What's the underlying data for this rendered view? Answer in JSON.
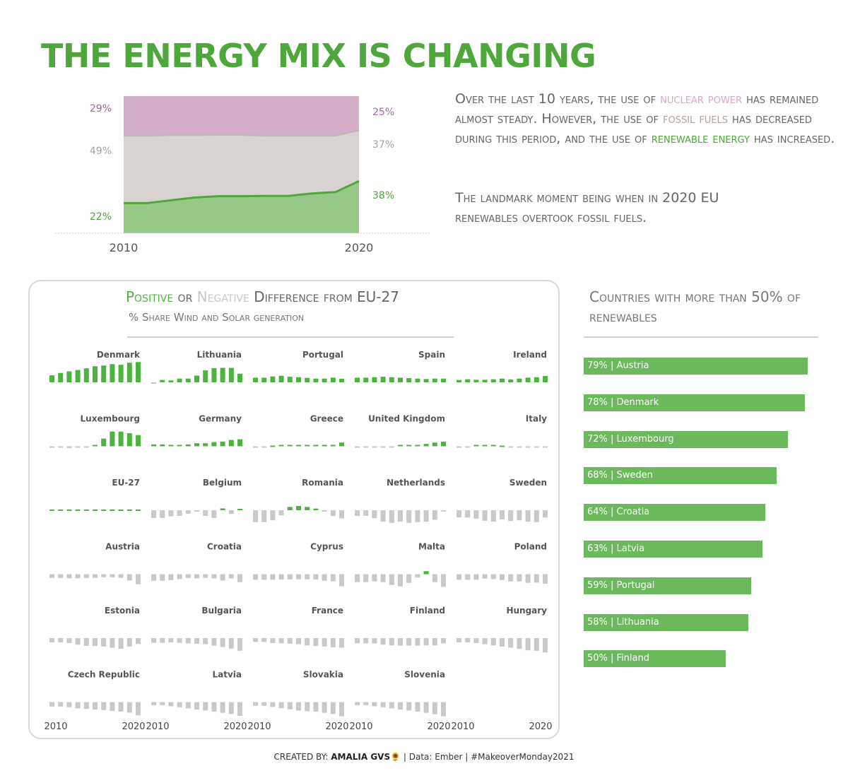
{
  "title": "THE ENERGY MIX IS CHANGING",
  "narrative": {
    "p1_a": "Over the last 10 years, the use of ",
    "p1_nuclear": "nuclear power",
    "p1_b": " has remained almost steady. However, the use of ",
    "p1_fossil": "fossil fuels",
    "p1_c": " has decreased during this period, and the use of ",
    "p1_renew": "renewable energy",
    "p1_d": " has increased.",
    "p2": "The landmark moment being when in 2020 EU renewables overtook fossil fuels."
  },
  "colors": {
    "title_green": "#4da73a",
    "nuclear": "#d4aec8",
    "fossil": "#d8d3d0",
    "renewable": "#98c885",
    "renewable_line": "#4da73a",
    "positive": "#4cb33e",
    "negative": "#c9c9c9",
    "bar": "#6cb85c"
  },
  "chart_data": [
    {
      "type": "area",
      "x": [
        2010,
        2011,
        2012,
        2013,
        2014,
        2015,
        2016,
        2017,
        2018,
        2019,
        2020
      ],
      "series": [
        {
          "name": "Renewables",
          "values": [
            22,
            22,
            24,
            26,
            27,
            27,
            27.2,
            27.2,
            29,
            30,
            38
          ]
        },
        {
          "name": "Fossil",
          "values": [
            49,
            49,
            47.5,
            45.5,
            44.6,
            44.6,
            43.9,
            43.9,
            42.1,
            41.1,
            37
          ]
        },
        {
          "name": "Nuclear",
          "values": [
            29,
            29,
            28.5,
            28.5,
            28.4,
            28.4,
            28.9,
            28.9,
            28.9,
            28.9,
            25
          ]
        }
      ],
      "start_labels": [
        "29%",
        "49%",
        "22%"
      ],
      "end_labels": [
        "25%",
        "37%",
        "38%"
      ],
      "x_tick_labels": [
        "2010",
        "2020"
      ],
      "ylim": [
        0,
        100
      ]
    },
    {
      "type": "bar",
      "title_positive": "Positive",
      "title_or": " or ",
      "title_negative": "Negative",
      "title_rest": " Difference from EU-27",
      "subtitle": "% Share Wind and Solar generation",
      "x": [
        2010,
        2011,
        2012,
        2013,
        2014,
        2015,
        2016,
        2017,
        2018,
        2019,
        2020
      ],
      "x_tick_labels": [
        "2010",
        "2020"
      ],
      "ylim": [
        -10,
        10
      ],
      "countries": [
        {
          "name": "Denmark",
          "values": [
            3.0,
            4.0,
            4.7,
            5.3,
            6.0,
            6.9,
            7.2,
            7.8,
            7.5,
            8.4,
            8.7
          ]
        },
        {
          "name": "Lithuania",
          "values": [
            -0.3,
            1.0,
            0.8,
            1.6,
            1.6,
            2.9,
            5.1,
            6.1,
            6.2,
            6.2,
            3.7
          ]
        },
        {
          "name": "Portugal",
          "values": [
            2.0,
            2.0,
            2.5,
            2.8,
            2.4,
            2.2,
            1.9,
            1.6,
            1.6,
            2.0,
            1.5
          ]
        },
        {
          "name": "Spain",
          "values": [
            2.0,
            2.0,
            2.2,
            2.4,
            2.2,
            2.0,
            1.8,
            1.6,
            1.4,
            1.6,
            1.6
          ]
        },
        {
          "name": "Ireland",
          "values": [
            1.0,
            1.3,
            1.1,
            1.1,
            1.3,
            1.6,
            1.2,
            1.6,
            2.0,
            2.2,
            2.7
          ]
        },
        {
          "name": "Luxembourg",
          "values": [
            -0.6,
            -0.6,
            -0.8,
            -0.4,
            -0.3,
            0.6,
            3.3,
            6.3,
            6.3,
            5.6,
            4.8
          ]
        },
        {
          "name": "Germany",
          "values": [
            0.8,
            0.8,
            0.6,
            0.6,
            0.8,
            1.3,
            1.3,
            1.8,
            2.0,
            2.7,
            3.0
          ]
        },
        {
          "name": "Greece",
          "values": [
            -0.2,
            -0.2,
            0.0,
            0.6,
            0.6,
            0.6,
            0.6,
            0.6,
            0.6,
            0.6,
            1.6
          ]
        },
        {
          "name": "United Kingdom",
          "values": [
            -0.6,
            -0.6,
            -0.4,
            -0.2,
            -0.2,
            0.2,
            0.2,
            0.6,
            1.0,
            1.6,
            2.0
          ]
        },
        {
          "name": "Italy",
          "values": [
            -0.2,
            -0.2,
            0.1,
            0.3,
            0.2,
            0.0,
            -0.2,
            -0.2,
            -0.2,
            -0.3,
            -0.6
          ]
        },
        {
          "name": "EU-27",
          "values": [
            0,
            0,
            0,
            0,
            0,
            0,
            0,
            0,
            0,
            0,
            0
          ]
        },
        {
          "name": "Belgium",
          "values": [
            -3.3,
            -3.3,
            -2.6,
            -2.4,
            -1.5,
            -0.3,
            -2.4,
            -3.3,
            0.8,
            -1.6,
            0.3
          ]
        },
        {
          "name": "Romania",
          "values": [
            -5.1,
            -5.1,
            -4.3,
            -2.2,
            1.4,
            1.8,
            1.4,
            0.7,
            -0.4,
            -2.5,
            -3.5
          ]
        },
        {
          "name": "Netherlands",
          "values": [
            -2.4,
            -2.4,
            -3.4,
            -4.9,
            -5.4,
            -4.9,
            -5.4,
            -5.1,
            -4.9,
            -4.1,
            -0.6
          ]
        },
        {
          "name": "Sweden",
          "values": [
            -3.1,
            -3.1,
            -3.6,
            -4.5,
            -4.9,
            -3.9,
            -4.6,
            -4.3,
            -4.9,
            -5.1,
            -3.1
          ]
        },
        {
          "name": "Austria",
          "values": [
            -1.6,
            -1.6,
            -1.8,
            -1.8,
            -1.6,
            -1.6,
            -1.3,
            -1.3,
            -1.6,
            -2.7,
            -4.3
          ]
        },
        {
          "name": "Croatia",
          "values": [
            -2.8,
            -2.8,
            -2.5,
            -2.1,
            -1.6,
            -1.8,
            -1.6,
            -1.8,
            -2.7,
            -1.8,
            -3.4
          ]
        },
        {
          "name": "Cyprus",
          "values": [
            -2.4,
            -2.4,
            -2.4,
            -2.3,
            -2.2,
            -2.2,
            -2.2,
            -2.3,
            -2.8,
            -3.1,
            -5.2
          ]
        },
        {
          "name": "Malta",
          "values": [
            -3.4,
            -3.4,
            -3.1,
            -3.4,
            -4.6,
            -5.2,
            -3.7,
            -1.4,
            1.3,
            -3.4,
            -5.4
          ]
        },
        {
          "name": "Poland",
          "values": [
            -2.4,
            -2.4,
            -2.4,
            -1.9,
            -2.1,
            -2.5,
            -3.1,
            -3.1,
            -3.7,
            -3.6,
            -4.1
          ]
        },
        {
          "name": "Estonia",
          "values": [
            -1.8,
            -1.8,
            -2.1,
            -2.8,
            -3.3,
            -3.3,
            -3.6,
            -4.1,
            -4.6,
            -3.6,
            -2.5
          ]
        },
        {
          "name": "Bulgaria",
          "values": [
            -2.0,
            -2.0,
            -1.8,
            -2.0,
            -2.2,
            -2.4,
            -2.6,
            -3.2,
            -3.8,
            -4.5,
            -5.4
          ]
        },
        {
          "name": "France",
          "values": [
            -1.6,
            -1.6,
            -2.1,
            -2.2,
            -2.4,
            -2.6,
            -3.1,
            -3.4,
            -3.6,
            -3.9,
            -4.1
          ]
        },
        {
          "name": "Finland",
          "values": [
            -2.2,
            -2.2,
            -2.3,
            -2.8,
            -3.1,
            -3.2,
            -3.2,
            -3.2,
            -3.1,
            -3.1,
            -2.2
          ]
        },
        {
          "name": "Hungary",
          "values": [
            -1.8,
            -1.8,
            -2.1,
            -2.6,
            -3.1,
            -3.6,
            -4.1,
            -4.6,
            -5.2,
            -5.4,
            -6.1
          ]
        },
        {
          "name": "Czech Republic",
          "values": [
            -1.9,
            -1.9,
            -2.2,
            -2.7,
            -2.9,
            -3.2,
            -3.4,
            -3.8,
            -4.1,
            -4.5,
            -5.7
          ]
        },
        {
          "name": "Latvia",
          "values": [
            -1.3,
            -1.3,
            -1.8,
            -2.2,
            -2.7,
            -3.2,
            -3.6,
            -4.1,
            -4.6,
            -5.1,
            -5.9
          ]
        },
        {
          "name": "Slovakia",
          "values": [
            -1.6,
            -1.6,
            -2.1,
            -2.6,
            -3.1,
            -3.6,
            -3.9,
            -4.1,
            -4.6,
            -5.1,
            -6.1
          ]
        },
        {
          "name": "Slovenia",
          "values": [
            -1.3,
            -1.3,
            -1.8,
            -2.2,
            -2.7,
            -3.2,
            -3.6,
            -4.1,
            -4.6,
            -5.2,
            -6.1
          ]
        }
      ]
    },
    {
      "type": "bar",
      "title": "Countries with more than 50% of renewables",
      "categories": [
        "Austria",
        "Denmark",
        "Luxembourg",
        "Sweden",
        "Croatia",
        "Latvia",
        "Portugal",
        "Lithuania",
        "Finland"
      ],
      "values": [
        79,
        78,
        72,
        68,
        64,
        63,
        59,
        58,
        50
      ],
      "labels": [
        "79% | Austria",
        "78% | Denmark",
        "72% | Luxembourg",
        "68% | Sweden",
        "64% | Croatia",
        "63% | Latvia",
        "59% | Portugal",
        "58% | Lithuania",
        "50% | Finland"
      ],
      "xlim": [
        0,
        79
      ]
    }
  ],
  "footer": {
    "created_by_label": "CREATED BY: ",
    "author": "AMALIA GVS",
    "sunflower": "🌻",
    "rest": " | Data: Ember | #MakeoverMonday2021"
  }
}
